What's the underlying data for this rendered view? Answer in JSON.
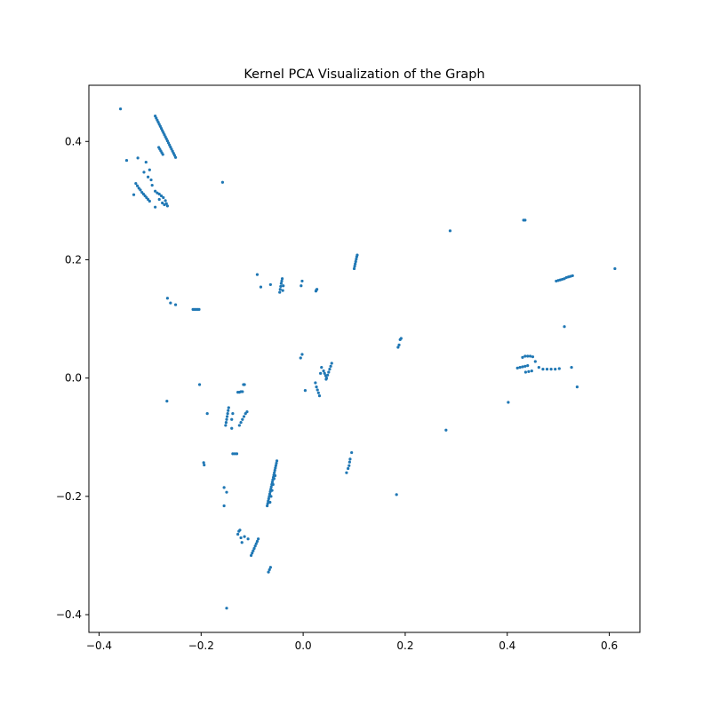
{
  "chart_data": {
    "type": "scatter",
    "title": "Kernel PCA Visualization of the Graph",
    "xlabel": "",
    "ylabel": "",
    "xlim": [
      -0.42,
      0.66
    ],
    "ylim": [
      -0.43,
      0.495
    ],
    "x_ticks": [
      -0.4,
      -0.2,
      0.0,
      0.2,
      0.4,
      0.6
    ],
    "x_tick_labels": [
      "−0.4",
      "−0.2",
      "0.0",
      "0.2",
      "0.4",
      "0.6"
    ],
    "y_ticks": [
      -0.4,
      -0.2,
      0.0,
      0.2,
      0.4
    ],
    "y_tick_labels": [
      "−0.4",
      "−0.2",
      "0.0",
      "0.2",
      "0.4"
    ],
    "grid": false,
    "point_color": "#1f77b4",
    "series": [
      {
        "points": [
          [
            -0.358,
            0.455
          ],
          [
            -0.346,
            0.368
          ],
          [
            -0.324,
            0.372
          ],
          [
            -0.308,
            0.365
          ],
          [
            -0.301,
            0.352
          ],
          [
            -0.312,
            0.348
          ],
          [
            -0.304,
            0.34
          ],
          [
            -0.298,
            0.335
          ],
          [
            -0.332,
            0.31
          ],
          [
            -0.29,
            0.289
          ],
          [
            -0.282,
            0.302
          ],
          [
            -0.296,
            0.326
          ],
          [
            -0.29,
            0.443
          ],
          [
            -0.288,
            0.4395
          ],
          [
            -0.286,
            0.436
          ],
          [
            -0.284,
            0.4325
          ],
          [
            -0.282,
            0.429
          ],
          [
            -0.28,
            0.4255
          ],
          [
            -0.278,
            0.422
          ],
          [
            -0.276,
            0.4185
          ],
          [
            -0.274,
            0.415
          ],
          [
            -0.272,
            0.4115
          ],
          [
            -0.27,
            0.408
          ],
          [
            -0.268,
            0.4045
          ],
          [
            -0.266,
            0.401
          ],
          [
            -0.264,
            0.3975
          ],
          [
            -0.262,
            0.394
          ],
          [
            -0.26,
            0.3905
          ],
          [
            -0.258,
            0.387
          ],
          [
            -0.256,
            0.3835
          ],
          [
            -0.254,
            0.38
          ],
          [
            -0.252,
            0.3765
          ],
          [
            -0.25,
            0.373
          ],
          [
            -0.283,
            0.39
          ],
          [
            -0.281,
            0.387
          ],
          [
            -0.279,
            0.384
          ],
          [
            -0.277,
            0.381
          ],
          [
            -0.275,
            0.378
          ],
          [
            -0.328,
            0.329
          ],
          [
            -0.325,
            0.325
          ],
          [
            -0.322,
            0.321
          ],
          [
            -0.319,
            0.318
          ],
          [
            -0.316,
            0.314
          ],
          [
            -0.313,
            0.311
          ],
          [
            -0.31,
            0.308
          ],
          [
            -0.307,
            0.305
          ],
          [
            -0.304,
            0.302
          ],
          [
            -0.301,
            0.299
          ],
          [
            -0.29,
            0.316
          ],
          [
            -0.286,
            0.313
          ],
          [
            -0.282,
            0.311
          ],
          [
            -0.278,
            0.308
          ],
          [
            -0.274,
            0.305
          ],
          [
            -0.27,
            0.3
          ],
          [
            -0.268,
            0.295
          ],
          [
            -0.266,
            0.291
          ],
          [
            -0.276,
            0.296
          ],
          [
            -0.272,
            0.293
          ],
          [
            -0.158,
            0.331
          ],
          [
            -0.266,
            0.135
          ],
          [
            -0.26,
            0.127
          ],
          [
            -0.25,
            0.124
          ],
          [
            -0.216,
            0.116
          ],
          [
            -0.213,
            0.116
          ],
          [
            -0.21,
            0.116
          ],
          [
            -0.207,
            0.116
          ],
          [
            -0.204,
            0.116
          ],
          [
            -0.09,
            0.175
          ],
          [
            -0.083,
            0.154
          ],
          [
            -0.064,
            0.158
          ],
          [
            -0.046,
            0.145
          ],
          [
            -0.045,
            0.15
          ],
          [
            -0.044,
            0.155
          ],
          [
            -0.043,
            0.16
          ],
          [
            -0.042,
            0.164
          ],
          [
            -0.041,
            0.168
          ],
          [
            -0.04,
            0.148
          ],
          [
            -0.039,
            0.156
          ],
          [
            -0.004,
            0.156
          ],
          [
            -0.002,
            0.164
          ],
          [
            0.025,
            0.147
          ],
          [
            0.026,
            0.149
          ],
          [
            0.027,
            0.15
          ],
          [
            0.1,
            0.185
          ],
          [
            0.101,
            0.189
          ],
          [
            0.102,
            0.193
          ],
          [
            0.103,
            0.197
          ],
          [
            0.104,
            0.201
          ],
          [
            0.105,
            0.205
          ],
          [
            0.106,
            0.208
          ],
          [
            0.288,
            0.249
          ],
          [
            0.432,
            0.267
          ],
          [
            0.435,
            0.267
          ],
          [
            0.496,
            0.164
          ],
          [
            0.5,
            0.165
          ],
          [
            0.504,
            0.166
          ],
          [
            0.508,
            0.167
          ],
          [
            0.512,
            0.168
          ],
          [
            0.516,
            0.17
          ],
          [
            0.52,
            0.171
          ],
          [
            0.524,
            0.172
          ],
          [
            0.528,
            0.173
          ],
          [
            0.611,
            0.185
          ],
          [
            0.186,
            0.052
          ],
          [
            0.188,
            0.056
          ],
          [
            0.19,
            0.065
          ],
          [
            0.192,
            0.067
          ],
          [
            0.512,
            0.087
          ],
          [
            0.526,
            0.018
          ],
          [
            0.537,
            -0.015
          ],
          [
            0.42,
            0.017
          ],
          [
            0.425,
            0.018
          ],
          [
            0.43,
            0.019
          ],
          [
            0.435,
            0.02
          ],
          [
            0.44,
            0.021
          ],
          [
            0.43,
            0.035
          ],
          [
            0.435,
            0.037
          ],
          [
            0.44,
            0.037
          ],
          [
            0.445,
            0.037
          ],
          [
            0.45,
            0.036
          ],
          [
            0.436,
            0.01
          ],
          [
            0.442,
            0.011
          ],
          [
            0.448,
            0.012
          ],
          [
            0.455,
            0.028
          ],
          [
            0.462,
            0.018
          ],
          [
            0.47,
            0.015
          ],
          [
            0.478,
            0.015
          ],
          [
            0.486,
            0.015
          ],
          [
            0.494,
            0.015
          ],
          [
            0.502,
            0.016
          ],
          [
            0.402,
            -0.041
          ],
          [
            0.28,
            -0.088
          ],
          [
            0.183,
            -0.197
          ],
          [
            0.04,
            0.012
          ],
          [
            0.042,
            0.008
          ],
          [
            0.044,
            0.004
          ],
          [
            0.046,
            0.0
          ],
          [
            0.048,
            0.005
          ],
          [
            0.05,
            0.01
          ],
          [
            0.052,
            0.015
          ],
          [
            0.054,
            0.02
          ],
          [
            0.056,
            0.025
          ],
          [
            0.045,
            -0.002
          ],
          [
            0.024,
            -0.008
          ],
          [
            0.026,
            -0.015
          ],
          [
            0.028,
            -0.02
          ],
          [
            0.03,
            -0.025
          ],
          [
            0.032,
            -0.03
          ],
          [
            0.034,
            0.008
          ],
          [
            0.036,
            0.018
          ],
          [
            -0.005,
            0.034
          ],
          [
            -0.002,
            0.04
          ],
          [
            0.004,
            -0.021
          ],
          [
            -0.203,
            -0.011
          ],
          [
            -0.267,
            -0.039
          ],
          [
            -0.188,
            -0.06
          ],
          [
            -0.128,
            -0.024
          ],
          [
            -0.125,
            -0.024
          ],
          [
            -0.122,
            -0.023
          ],
          [
            -0.119,
            -0.023
          ],
          [
            -0.117,
            -0.011
          ],
          [
            -0.115,
            -0.011
          ],
          [
            -0.152,
            -0.08
          ],
          [
            -0.151,
            -0.075
          ],
          [
            -0.15,
            -0.07
          ],
          [
            -0.149,
            -0.065
          ],
          [
            -0.148,
            -0.06
          ],
          [
            -0.147,
            -0.055
          ],
          [
            -0.146,
            -0.05
          ],
          [
            -0.14,
            -0.07
          ],
          [
            -0.138,
            -0.06
          ],
          [
            -0.14,
            -0.085
          ],
          [
            -0.125,
            -0.08
          ],
          [
            -0.122,
            -0.075
          ],
          [
            -0.119,
            -0.07
          ],
          [
            -0.116,
            -0.065
          ],
          [
            -0.113,
            -0.06
          ],
          [
            -0.11,
            -0.057
          ],
          [
            -0.138,
            -0.128
          ],
          [
            -0.134,
            -0.128
          ],
          [
            -0.13,
            -0.128
          ],
          [
            -0.195,
            -0.143
          ],
          [
            -0.194,
            -0.147
          ],
          [
            -0.155,
            -0.185
          ],
          [
            -0.15,
            -0.193
          ],
          [
            -0.155,
            -0.216
          ],
          [
            -0.0705,
            -0.216
          ],
          [
            -0.0695,
            -0.212
          ],
          [
            -0.0685,
            -0.208
          ],
          [
            -0.0675,
            -0.204
          ],
          [
            -0.0665,
            -0.2
          ],
          [
            -0.0655,
            -0.196
          ],
          [
            -0.0645,
            -0.192
          ],
          [
            -0.0635,
            -0.188
          ],
          [
            -0.0625,
            -0.184
          ],
          [
            -0.0615,
            -0.18
          ],
          [
            -0.0605,
            -0.176
          ],
          [
            -0.0595,
            -0.172
          ],
          [
            -0.0585,
            -0.168
          ],
          [
            -0.0575,
            -0.164
          ],
          [
            -0.0565,
            -0.16
          ],
          [
            -0.0555,
            -0.156
          ],
          [
            -0.0545,
            -0.152
          ],
          [
            -0.0535,
            -0.148
          ],
          [
            -0.0525,
            -0.144
          ],
          [
            -0.0515,
            -0.14
          ],
          [
            -0.065,
            -0.21
          ],
          [
            -0.063,
            -0.2
          ],
          [
            -0.061,
            -0.19
          ],
          [
            -0.059,
            -0.18
          ],
          [
            -0.057,
            -0.17
          ],
          [
            -0.055,
            -0.165
          ],
          [
            0.095,
            -0.126
          ],
          [
            0.092,
            -0.137
          ],
          [
            0.091,
            -0.142
          ],
          [
            0.09,
            -0.148
          ],
          [
            0.088,
            -0.153
          ],
          [
            0.085,
            -0.16
          ],
          [
            -0.128,
            -0.264
          ],
          [
            -0.126,
            -0.259
          ],
          [
            -0.124,
            -0.257
          ],
          [
            -0.122,
            -0.27
          ],
          [
            -0.12,
            -0.278
          ],
          [
            -0.115,
            -0.268
          ],
          [
            -0.108,
            -0.272
          ],
          [
            -0.102,
            -0.3
          ],
          [
            -0.1,
            -0.296
          ],
          [
            -0.098,
            -0.292
          ],
          [
            -0.096,
            -0.288
          ],
          [
            -0.094,
            -0.284
          ],
          [
            -0.092,
            -0.28
          ],
          [
            -0.09,
            -0.276
          ],
          [
            -0.088,
            -0.272
          ],
          [
            -0.068,
            -0.328
          ],
          [
            -0.066,
            -0.324
          ],
          [
            -0.064,
            -0.32
          ],
          [
            -0.15,
            -0.389
          ]
        ]
      }
    ]
  }
}
